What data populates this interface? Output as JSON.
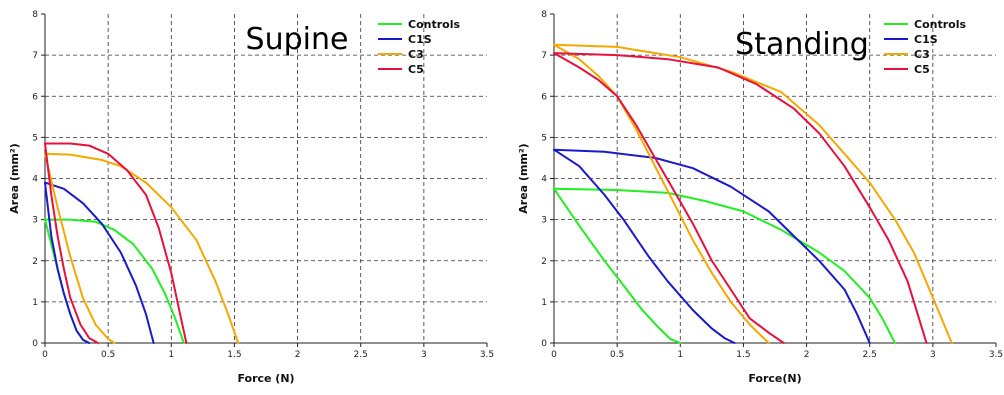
{
  "chart_data": [
    {
      "type": "line",
      "title": "Supine",
      "xlabel": "Force (N)",
      "ylabel": "Area (mm²)",
      "xlim": [
        0,
        3.5
      ],
      "ylim": [
        0,
        8
      ],
      "xticks": [
        "0",
        "0.5",
        "1",
        "1.5",
        "2",
        "2.5",
        "3",
        "3.5"
      ],
      "yticks": [
        "0",
        "1",
        "2",
        "3",
        "4",
        "5",
        "6",
        "7",
        "8"
      ],
      "grid": "dashed",
      "legend": "top-right",
      "series": [
        {
          "name": "Controls",
          "color": "#22ee22",
          "points": [
            [
              0,
              3.0
            ],
            [
              0.2,
              3.0
            ],
            [
              0.4,
              2.95
            ],
            [
              0.55,
              2.75
            ],
            [
              0.7,
              2.4
            ],
            [
              0.85,
              1.8
            ],
            [
              0.95,
              1.2
            ],
            [
              1.03,
              0.6
            ],
            [
              1.1,
              0
            ]
          ]
        },
        {
          "name": "",
          "color": "#22ee22",
          "points": [
            [
              0,
              3.0
            ],
            [
              0.05,
              2.4
            ],
            [
              0.1,
              1.8
            ],
            [
              0.15,
              1.2
            ],
            [
              0.2,
              0.7
            ],
            [
              0.25,
              0.3
            ],
            [
              0.3,
              0.08
            ],
            [
              0.35,
              0
            ]
          ]
        },
        {
          "name": "C1S",
          "color": "#1a1acc",
          "points": [
            [
              0,
              3.9
            ],
            [
              0.15,
              3.75
            ],
            [
              0.3,
              3.4
            ],
            [
              0.45,
              2.9
            ],
            [
              0.6,
              2.2
            ],
            [
              0.72,
              1.4
            ],
            [
              0.8,
              0.7
            ],
            [
              0.86,
              0
            ]
          ]
        },
        {
          "name": "",
          "color": "#1a1acc",
          "points": [
            [
              0,
              3.9
            ],
            [
              0.05,
              2.6
            ],
            [
              0.1,
              1.8
            ],
            [
              0.15,
              1.2
            ],
            [
              0.2,
              0.7
            ],
            [
              0.25,
              0.3
            ],
            [
              0.3,
              0.08
            ],
            [
              0.35,
              0
            ]
          ]
        },
        {
          "name": "C3",
          "color": "#f5a800",
          "points": [
            [
              0,
              4.6
            ],
            [
              0.2,
              4.58
            ],
            [
              0.45,
              4.45
            ],
            [
              0.6,
              4.3
            ],
            [
              0.8,
              3.9
            ],
            [
              1.0,
              3.3
            ],
            [
              1.2,
              2.5
            ],
            [
              1.35,
              1.5
            ],
            [
              1.45,
              0.7
            ],
            [
              1.53,
              0
            ]
          ]
        },
        {
          "name": "",
          "color": "#f5a800",
          "points": [
            [
              0,
              4.6
            ],
            [
              0.1,
              3.3
            ],
            [
              0.2,
              2.1
            ],
            [
              0.3,
              1.1
            ],
            [
              0.4,
              0.45
            ],
            [
              0.5,
              0.1
            ],
            [
              0.55,
              0
            ]
          ]
        },
        {
          "name": "C5",
          "color": "#e8103c",
          "points": [
            [
              0,
              4.85
            ],
            [
              0.2,
              4.85
            ],
            [
              0.35,
              4.8
            ],
            [
              0.5,
              4.6
            ],
            [
              0.65,
              4.2
            ],
            [
              0.8,
              3.6
            ],
            [
              0.9,
              2.8
            ],
            [
              1.0,
              1.7
            ],
            [
              1.07,
              0.7
            ],
            [
              1.12,
              0
            ]
          ]
        },
        {
          "name": "",
          "color": "#e8103c",
          "points": [
            [
              0,
              4.85
            ],
            [
              0.05,
              3.6
            ],
            [
              0.1,
              2.6
            ],
            [
              0.15,
              1.8
            ],
            [
              0.2,
              1.1
            ],
            [
              0.28,
              0.45
            ],
            [
              0.35,
              0.12
            ],
            [
              0.42,
              0
            ]
          ]
        }
      ]
    },
    {
      "type": "line",
      "title": "Standing",
      "xlabel": "Force(N)",
      "ylabel": "Area (mm²)",
      "xlim": [
        0,
        3.5
      ],
      "ylim": [
        0,
        8
      ],
      "xticks": [
        "0",
        "0.5",
        "1",
        "1.5",
        "2",
        "2.5",
        "3",
        "3.5"
      ],
      "yticks": [
        "0",
        "1",
        "2",
        "3",
        "4",
        "5",
        "6",
        "7",
        "8"
      ],
      "grid": "dashed",
      "legend": "top-right",
      "series": [
        {
          "name": "Controls",
          "color": "#22ee22",
          "points": [
            [
              0,
              3.75
            ],
            [
              0.5,
              3.72
            ],
            [
              0.9,
              3.65
            ],
            [
              1.2,
              3.45
            ],
            [
              1.5,
              3.2
            ],
            [
              1.8,
              2.75
            ],
            [
              2.1,
              2.2
            ],
            [
              2.3,
              1.75
            ],
            [
              2.5,
              1.1
            ],
            [
              2.6,
              0.6
            ],
            [
              2.7,
              0
            ]
          ]
        },
        {
          "name": "",
          "color": "#22ee22",
          "points": [
            [
              0,
              3.75
            ],
            [
              0.2,
              2.85
            ],
            [
              0.4,
              2.0
            ],
            [
              0.55,
              1.4
            ],
            [
              0.7,
              0.8
            ],
            [
              0.82,
              0.4
            ],
            [
              0.92,
              0.1
            ],
            [
              1.0,
              0
            ]
          ]
        },
        {
          "name": "C1S",
          "color": "#1a1acc",
          "points": [
            [
              0,
              4.7
            ],
            [
              0.4,
              4.65
            ],
            [
              0.8,
              4.5
            ],
            [
              1.1,
              4.25
            ],
            [
              1.4,
              3.8
            ],
            [
              1.7,
              3.2
            ],
            [
              1.9,
              2.6
            ],
            [
              2.1,
              2.0
            ],
            [
              2.3,
              1.3
            ],
            [
              2.4,
              0.7
            ],
            [
              2.5,
              0
            ]
          ]
        },
        {
          "name": "",
          "color": "#1a1acc",
          "points": [
            [
              0,
              4.7
            ],
            [
              0.2,
              4.3
            ],
            [
              0.4,
              3.6
            ],
            [
              0.55,
              3.0
            ],
            [
              0.75,
              2.1
            ],
            [
              0.9,
              1.5
            ],
            [
              1.1,
              0.8
            ],
            [
              1.25,
              0.35
            ],
            [
              1.35,
              0.12
            ],
            [
              1.43,
              0
            ]
          ]
        },
        {
          "name": "C3",
          "color": "#f5a800",
          "points": [
            [
              0,
              7.25
            ],
            [
              0.5,
              7.2
            ],
            [
              1.0,
              6.95
            ],
            [
              1.4,
              6.6
            ],
            [
              1.8,
              6.1
            ],
            [
              2.1,
              5.3
            ],
            [
              2.3,
              4.6
            ],
            [
              2.5,
              3.9
            ],
            [
              2.7,
              3.0
            ],
            [
              2.85,
              2.2
            ],
            [
              3.0,
              1.1
            ],
            [
              3.15,
              0
            ]
          ]
        },
        {
          "name": "",
          "color": "#f5a800",
          "points": [
            [
              0,
              7.25
            ],
            [
              0.2,
              6.9
            ],
            [
              0.35,
              6.5
            ],
            [
              0.5,
              6.0
            ],
            [
              0.65,
              5.2
            ],
            [
              0.8,
              4.3
            ],
            [
              0.95,
              3.4
            ],
            [
              1.1,
              2.5
            ],
            [
              1.25,
              1.7
            ],
            [
              1.4,
              1.0
            ],
            [
              1.55,
              0.45
            ],
            [
              1.7,
              0
            ]
          ]
        },
        {
          "name": "C5",
          "color": "#e8103c",
          "points": [
            [
              0,
              7.05
            ],
            [
              0.5,
              7.0
            ],
            [
              0.9,
              6.9
            ],
            [
              1.3,
              6.7
            ],
            [
              1.6,
              6.3
            ],
            [
              1.9,
              5.7
            ],
            [
              2.1,
              5.1
            ],
            [
              2.3,
              4.3
            ],
            [
              2.5,
              3.3
            ],
            [
              2.65,
              2.5
            ],
            [
              2.8,
              1.5
            ],
            [
              2.95,
              0
            ]
          ]
        },
        {
          "name": "",
          "color": "#e8103c",
          "points": [
            [
              0,
              7.05
            ],
            [
              0.2,
              6.7
            ],
            [
              0.35,
              6.4
            ],
            [
              0.5,
              6.0
            ],
            [
              0.65,
              5.3
            ],
            [
              0.8,
              4.5
            ],
            [
              0.95,
              3.7
            ],
            [
              1.1,
              2.9
            ],
            [
              1.25,
              2.0
            ],
            [
              1.4,
              1.3
            ],
            [
              1.55,
              0.6
            ],
            [
              1.7,
              0.25
            ],
            [
              1.82,
              0
            ]
          ]
        }
      ]
    }
  ]
}
